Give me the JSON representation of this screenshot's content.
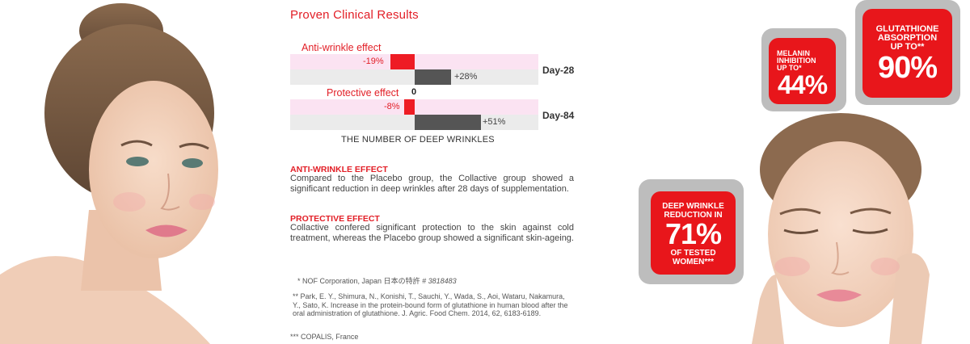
{
  "title": "Proven Clinical Results",
  "chart": {
    "groups": [
      {
        "label": "Anti-wrinkle effect",
        "collactive": "-19%",
        "placebo": "+28%",
        "day": "Day-28",
        "collactive_value": -19,
        "placebo_value": 28
      },
      {
        "label": "Protective effect",
        "collactive": "-8%",
        "placebo": "+51%",
        "day": "Day-84",
        "collactive_value": -8,
        "placebo_value": 51
      }
    ],
    "zero": "0",
    "caption": "THE NUMBER OF DEEP WRINKLES"
  },
  "sections": [
    {
      "heading": "ANTI-WRINKLE EFFECT",
      "body": "Compared to the Placebo group, the Collactive group showed a significant reduction in deep wrinkles after 28 days of supplementation."
    },
    {
      "heading": "PROTECTIVE EFFECT",
      "body": "Collactive confered significant protection to the skin against cold treatment, whereas the Placebo group showed a significant skin-ageing."
    }
  ],
  "notes": {
    "n1_prefix": "* NOF Corporation, Japan ",
    "n1_jp": "日本の特許",
    "n1_num": " # 3818483",
    "n2": "** Park, E. Y., Shimura, N., Konishi, T., Sauchi, Y., Wada, S., Aoi, Wataru, Nakamura, Y., Sato, K. Increase in the protein-bound form of glutathione in human blood after the oral administration of glutathione. J. Agric. Food Chem. 2014, 62, 6183-6189.",
    "n3": "*** COPALIS, France"
  },
  "badges": {
    "melanin": {
      "line1": "MELANIN",
      "line2": "INHIBITION",
      "line3": "UP TO*",
      "value": "44%"
    },
    "glutathione": {
      "line1": "GLUTATHIONE",
      "line2": "ABSORPTION",
      "line3": "UP TO**",
      "value": "90%"
    },
    "wrinkle": {
      "line1": "DEEP WRINKLE",
      "line2": "REDUCTION IN",
      "value": "71%",
      "line3": "OF TESTED",
      "line4": "WOMEN***"
    }
  },
  "colors": {
    "accent": "#e21e26",
    "badge_red": "#e8161b",
    "placebo_grey": "#555555"
  }
}
